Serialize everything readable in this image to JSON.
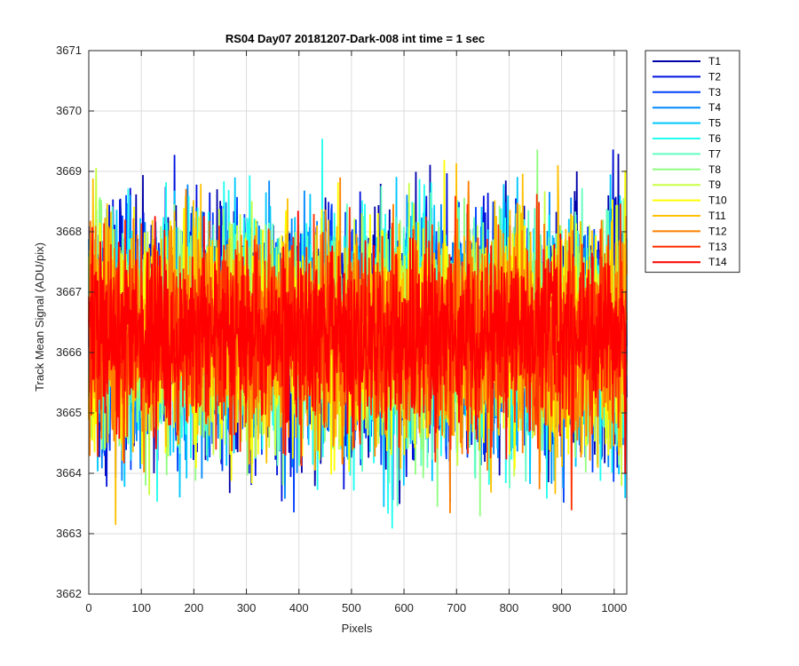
{
  "chart_data": {
    "type": "line",
    "title": "RS04 Day07 20181207-Dark-008 int time = 1 sec",
    "xlabel": "Pixels",
    "ylabel": "Track Mean Signal (ADU/pix)",
    "xlim": [
      0,
      1024
    ],
    "ylim": [
      3662,
      3671
    ],
    "xticks": [
      0,
      100,
      200,
      300,
      400,
      500,
      600,
      700,
      800,
      900,
      1000
    ],
    "yticks": [
      3662,
      3663,
      3664,
      3665,
      3666,
      3667,
      3668,
      3669,
      3670,
      3671
    ],
    "grid": true,
    "legend_position": "outside-top-right",
    "num_points": 1024,
    "series": [
      {
        "name": "T1",
        "color": "#0000AA",
        "mean": 3666.35,
        "noise_sd": 0.95,
        "seed": 11
      },
      {
        "name": "T2",
        "color": "#0010DD",
        "mean": 3666.35,
        "noise_sd": 0.95,
        "seed": 23
      },
      {
        "name": "T3",
        "color": "#0040FF",
        "mean": 3666.3,
        "noise_sd": 0.95,
        "seed": 37
      },
      {
        "name": "T4",
        "color": "#0088FF",
        "mean": 3666.3,
        "noise_sd": 0.95,
        "seed": 41
      },
      {
        "name": "T5",
        "color": "#00C8FF",
        "mean": 3666.3,
        "noise_sd": 0.95,
        "seed": 53
      },
      {
        "name": "T6",
        "color": "#20FFF0",
        "mean": 3666.3,
        "noise_sd": 0.95,
        "seed": 67
      },
      {
        "name": "T7",
        "color": "#60FFC0",
        "mean": 3666.3,
        "noise_sd": 0.9,
        "seed": 71
      },
      {
        "name": "T8",
        "color": "#90FF80",
        "mean": 3666.3,
        "noise_sd": 0.9,
        "seed": 83
      },
      {
        "name": "T9",
        "color": "#C8FF40",
        "mean": 3666.3,
        "noise_sd": 0.9,
        "seed": 97
      },
      {
        "name": "T10",
        "color": "#FFFF00",
        "mean": 3666.3,
        "noise_sd": 0.9,
        "seed": 101
      },
      {
        "name": "T11",
        "color": "#FFC000",
        "mean": 3666.3,
        "noise_sd": 0.9,
        "seed": 113
      },
      {
        "name": "T12",
        "color": "#FF8000",
        "mean": 3666.3,
        "noise_sd": 0.85,
        "seed": 127
      },
      {
        "name": "T13",
        "color": "#FF3000",
        "mean": 3666.25,
        "noise_sd": 0.8,
        "seed": 131
      },
      {
        "name": "T14",
        "color": "#FF0000",
        "mean": 3666.25,
        "noise_sd": 0.7,
        "seed": 149
      }
    ]
  }
}
